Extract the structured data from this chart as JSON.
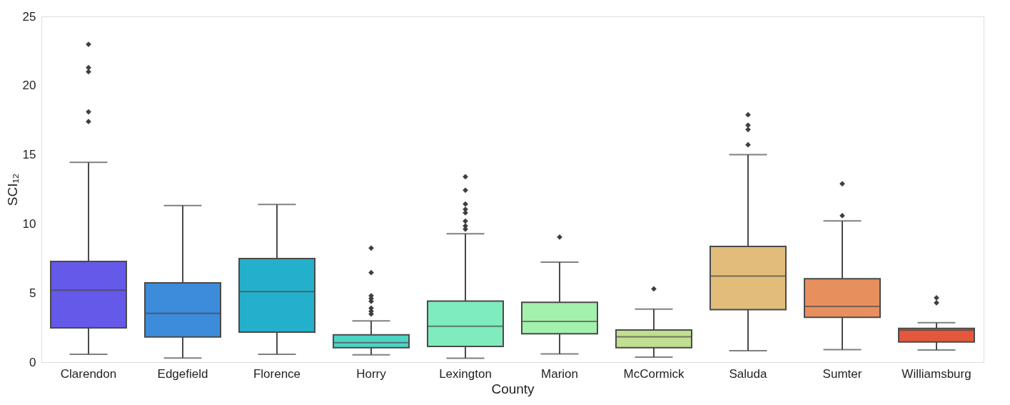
{
  "chart_data": {
    "type": "box",
    "xlabel": "County",
    "ylabel": "SCI₁₂",
    "categories": [
      "Clarendon",
      "Edgefield",
      "Florence",
      "Horry",
      "Lexington",
      "Marion",
      "McCormick",
      "Saluda",
      "Sumter",
      "Williamsburg"
    ],
    "colors": [
      "#6459e8",
      "#3d8bdb",
      "#24b0cc",
      "#4dd4c6",
      "#7eecbd",
      "#a4f0ad",
      "#c1df90",
      "#e2bc7a",
      "#e88f5e",
      "#e3583c"
    ],
    "boxes": [
      {
        "low": 0.57,
        "q1": 2.48,
        "median": 5.2,
        "q3": 7.28,
        "high": 14.45,
        "outliers": [
          22.98,
          21.3,
          21.0,
          18.1,
          17.4
        ]
      },
      {
        "low": 0.3,
        "q1": 1.82,
        "median": 3.53,
        "q3": 5.73,
        "high": 11.33
      },
      {
        "low": 0.57,
        "q1": 2.17,
        "median": 5.1,
        "q3": 7.49,
        "high": 11.4
      },
      {
        "low": 0.53,
        "q1": 1.05,
        "median": 1.41,
        "q3": 1.98,
        "high": 2.98,
        "outliers": [
          8.25,
          6.47,
          4.8,
          4.6,
          4.4,
          3.9,
          3.68,
          3.48
        ]
      },
      {
        "low": 0.29,
        "q1": 1.14,
        "median": 2.6,
        "q3": 4.41,
        "high": 9.28,
        "outliers": [
          13.41,
          12.43,
          11.43,
          11.05,
          10.8,
          10.2,
          9.85,
          9.62
        ]
      },
      {
        "low": 0.6,
        "q1": 2.05,
        "median": 2.94,
        "q3": 4.32,
        "high": 7.23,
        "outliers": [
          9.04
        ]
      },
      {
        "low": 0.36,
        "q1": 1.05,
        "median": 1.84,
        "q3": 2.32,
        "high": 3.84,
        "outliers": [
          5.3
        ]
      },
      {
        "low": 0.83,
        "q1": 3.8,
        "median": 6.22,
        "q3": 8.37,
        "high": 15.0,
        "outliers": [
          17.89,
          17.13,
          16.82,
          15.72
        ]
      },
      {
        "low": 0.9,
        "q1": 3.24,
        "median": 4.03,
        "q3": 6.03,
        "high": 10.21,
        "outliers": [
          12.9,
          10.59
        ]
      },
      {
        "low": 0.88,
        "q1": 1.46,
        "median": 2.31,
        "q3": 2.44,
        "high": 2.86,
        "outliers": [
          4.65,
          4.29
        ]
      }
    ],
    "ylim": [
      0,
      25
    ],
    "yticks": [
      0,
      5,
      10,
      15,
      20,
      25
    ],
    "grid": false
  }
}
